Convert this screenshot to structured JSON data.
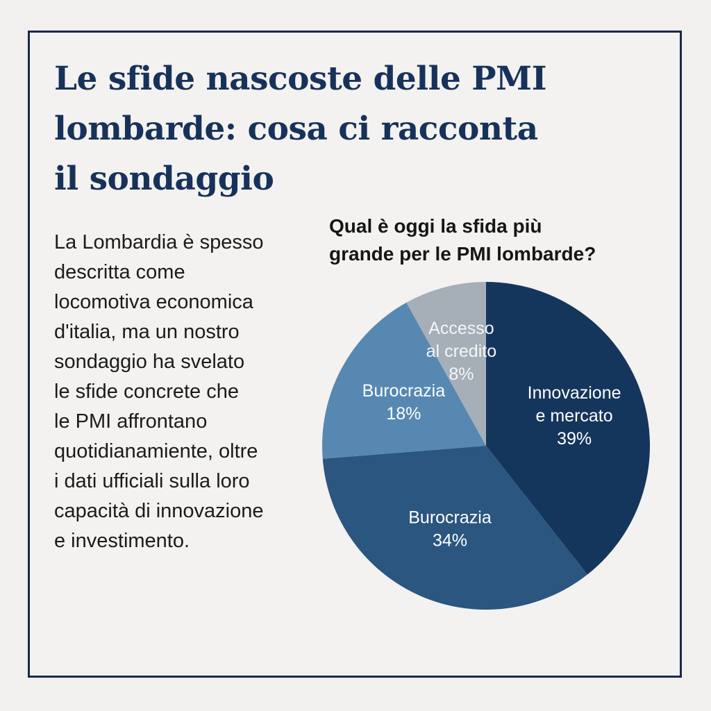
{
  "title_lines": [
    "Le sfide nascoste delle PMI",
    "lombarde: cosa ci racconta",
    "il sondaggio"
  ],
  "body_lines": [
    "La Lombardia è spesso",
    "descritta come",
    "locomotiva economica",
    "d'italia, ma un nostro",
    "sondaggio ha svelato",
    "le sfide concrete che",
    "le PMI affrontano",
    "quotidianamiente, oltre",
    "i dati ufficiali sulla loro",
    "capacità di innovazione",
    "e investimento."
  ],
  "colors": {
    "frame": "#17294a",
    "title": "#17325a",
    "slice_dark": "#15365c",
    "slice_mid": "#2a5680",
    "slice_light": "#5688b2",
    "slice_grey": "#a6aeb8"
  },
  "chart_data": {
    "type": "pie",
    "title_lines": [
      "Qual è oggi la sfida più",
      "grande per le PMI lombarde?"
    ],
    "slices": [
      {
        "label_lines": [
          "Innovazione",
          "e mercato"
        ],
        "value": 39,
        "value_label": "39%",
        "color": "#15365c"
      },
      {
        "label_lines": [
          "Burocrazia"
        ],
        "value": 34,
        "value_label": "34%",
        "color": "#2a5680"
      },
      {
        "label_lines": [
          "Burocrazia"
        ],
        "value": 18,
        "value_label": "18%",
        "color": "#5688b2"
      },
      {
        "label_lines": [
          "Accesso",
          "al credito"
        ],
        "value": 8,
        "value_label": "8%",
        "color": "#a6aeb8"
      }
    ]
  }
}
